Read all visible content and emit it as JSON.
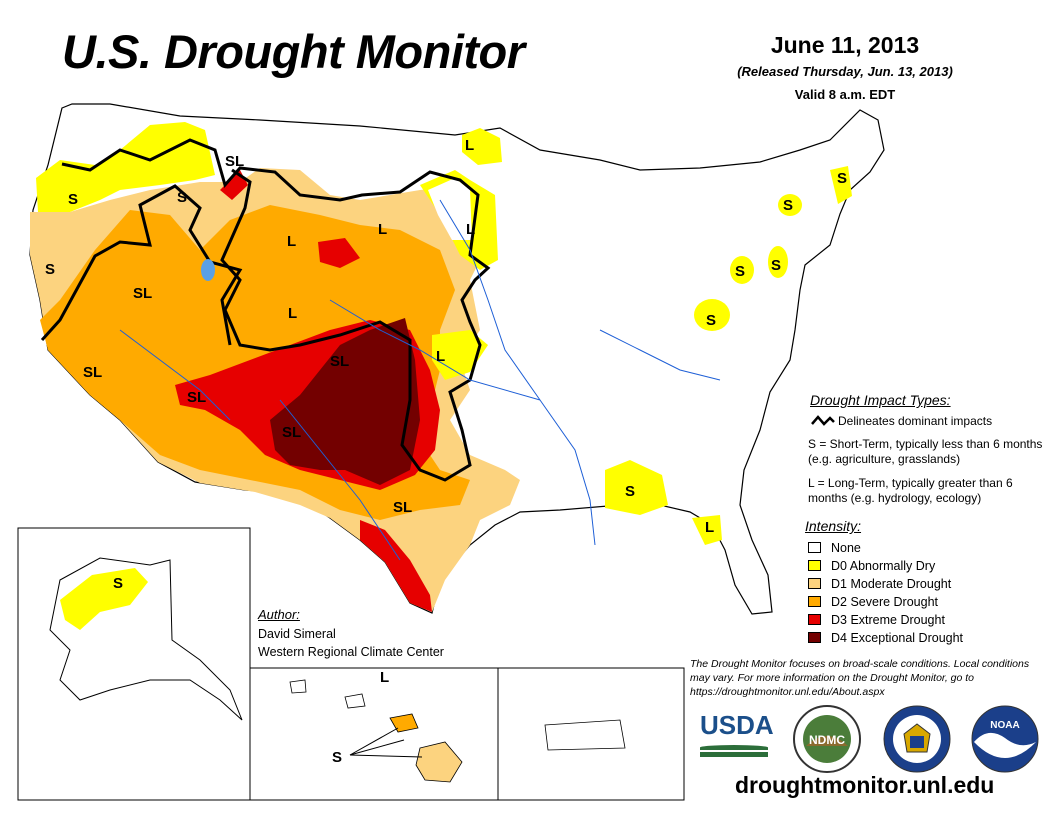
{
  "header": {
    "title": "U.S. Drought Monitor",
    "date": "June 11, 2013",
    "released": "(Released Thursday, Jun. 13, 2013)",
    "valid": "Valid 8 a.m. EDT"
  },
  "map_labels": {
    "sl_north": "SL",
    "s_nw": "S",
    "s_idaho": "S",
    "s_ca": "S",
    "l_mt": "L",
    "l_nd": "L",
    "l_mn": "L",
    "l_mn2": "L",
    "sl_nv": "SL",
    "l_wy": "L",
    "sl_ca": "SL",
    "sl_az": "SL",
    "sl_co": "SL",
    "l_ks": "L",
    "sl_nm": "SL",
    "sl_tx": "SL",
    "s_me": "S",
    "s_ny": "S",
    "s_ny2": "S",
    "s_pa": "S",
    "s_wv": "S",
    "s_gulf": "S",
    "l_fl": "L",
    "s_ak": "S",
    "l_hi": "L",
    "s_hi": "S"
  },
  "impact_legend": {
    "title": "Drought Impact Types:",
    "line_label": "Delineates dominant impacts",
    "short_term": "S = Short-Term, typically less than 6 months (e.g. agriculture, grasslands)",
    "long_term": "L = Long-Term, typically greater than 6 months (e.g. hydrology, ecology)"
  },
  "intensity_legend": {
    "title": "Intensity:",
    "items": [
      {
        "label": "None",
        "color": "#ffffff"
      },
      {
        "label": "D0 Abnormally Dry",
        "color": "#ffff00"
      },
      {
        "label": "D1 Moderate Drought",
        "color": "#fcd37f"
      },
      {
        "label": "D2 Severe Drought",
        "color": "#ffaa00"
      },
      {
        "label": "D3 Extreme Drought",
        "color": "#e60000"
      },
      {
        "label": "D4 Exceptional Drought",
        "color": "#730000"
      }
    ]
  },
  "author": {
    "label": "Author:",
    "name": "David Simeral",
    "org": "Western Regional Climate Center"
  },
  "disclaimer": "The Drought Monitor focuses on broad-scale conditions. Local conditions may vary. For more information on the Drought Monitor, go to https://droughtmonitor.unl.edu/About.aspx",
  "logos": {
    "usda": "USDA",
    "ndmc": "NDMC",
    "noaa": "NOAA"
  },
  "url": "droughtmonitor.unl.edu"
}
